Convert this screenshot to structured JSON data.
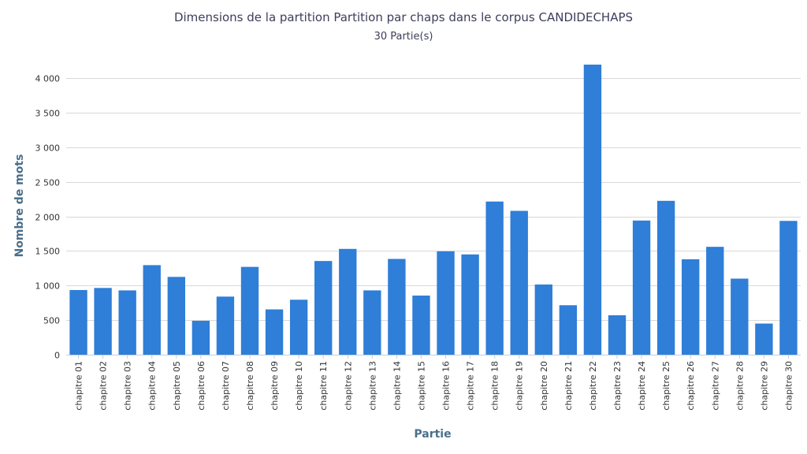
{
  "title": "Dimensions de la partition Partition par chaps dans le corpus CANDIDECHAPS",
  "subtitle": "30 Partie(s)",
  "colors": {
    "bar": "#2f7ed8",
    "grid": "#d8d8d8",
    "axis_title": "#4a6f8a"
  },
  "chart_data": {
    "type": "bar",
    "title": "Dimensions de la partition Partition par chaps dans le corpus CANDIDECHAPS",
    "subtitle": "30 Partie(s)",
    "xlabel": "Partie",
    "ylabel": "Nombre de mots",
    "ylim": [
      0,
      4400
    ],
    "yticks": [
      0,
      500,
      1000,
      1500,
      2000,
      2500,
      3000,
      3500,
      4000
    ],
    "ytick_labels": [
      "0",
      "500",
      "1 000",
      "1 500",
      "2 000",
      "2 500",
      "3 000",
      "3 500",
      "4 000"
    ],
    "grid": true,
    "legend": false,
    "categories": [
      "chapitre 01",
      "chapitre 02",
      "chapitre 03",
      "chapitre 04",
      "chapitre 05",
      "chapitre  06",
      "chapitre 07",
      "chapitre 08",
      "chapitre 09",
      "chapitre 10",
      "chapitre 11",
      "chapitre 12",
      "chapitre 13",
      "chapitre 14",
      "chapitre 15",
      "chapitre 16",
      "chapitre 17",
      "chapitre 18",
      "chapitre 19",
      "chapitre 20",
      "chapitre 21",
      "chapitre 22",
      "chapitre 23",
      "chapitre 24",
      "chapitre 25",
      "chapitre 26",
      "chapitre 27",
      "chapitre 28",
      "chapitre 29",
      "chapitre 30"
    ],
    "values": [
      935,
      965,
      930,
      1295,
      1125,
      490,
      840,
      1270,
      655,
      795,
      1355,
      1530,
      930,
      1385,
      855,
      1495,
      1450,
      2215,
      2080,
      1015,
      715,
      4195,
      570,
      1940,
      2225,
      1380,
      1560,
      1100,
      450,
      1935
    ]
  }
}
